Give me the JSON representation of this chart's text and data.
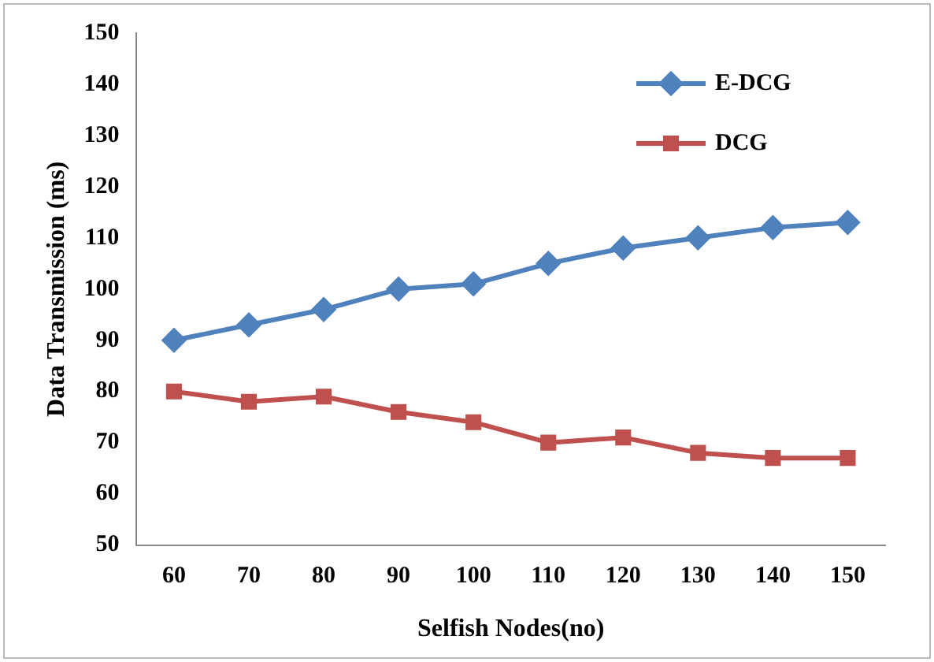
{
  "chart_data": {
    "type": "line",
    "xlabel": "Selfish Nodes(no)",
    "ylabel": "Data Transmission (ms)",
    "categories": [
      "60",
      "70",
      "80",
      "90",
      "100",
      "110",
      "120",
      "130",
      "140",
      "150"
    ],
    "series": [
      {
        "name": "E-DCG",
        "color": "#4f81bd",
        "marker": "diamond",
        "values": [
          90,
          93,
          96,
          100,
          101,
          105,
          108,
          110,
          112,
          113
        ]
      },
      {
        "name": "DCG",
        "color": "#c0504d",
        "marker": "square",
        "values": [
          80,
          78,
          79,
          76,
          74,
          70,
          71,
          68,
          67,
          67
        ]
      }
    ],
    "ylim": [
      50,
      150
    ],
    "yticks": [
      50,
      60,
      70,
      80,
      90,
      100,
      110,
      120,
      130,
      140,
      150
    ],
    "grid": false,
    "legend": "top right"
  }
}
